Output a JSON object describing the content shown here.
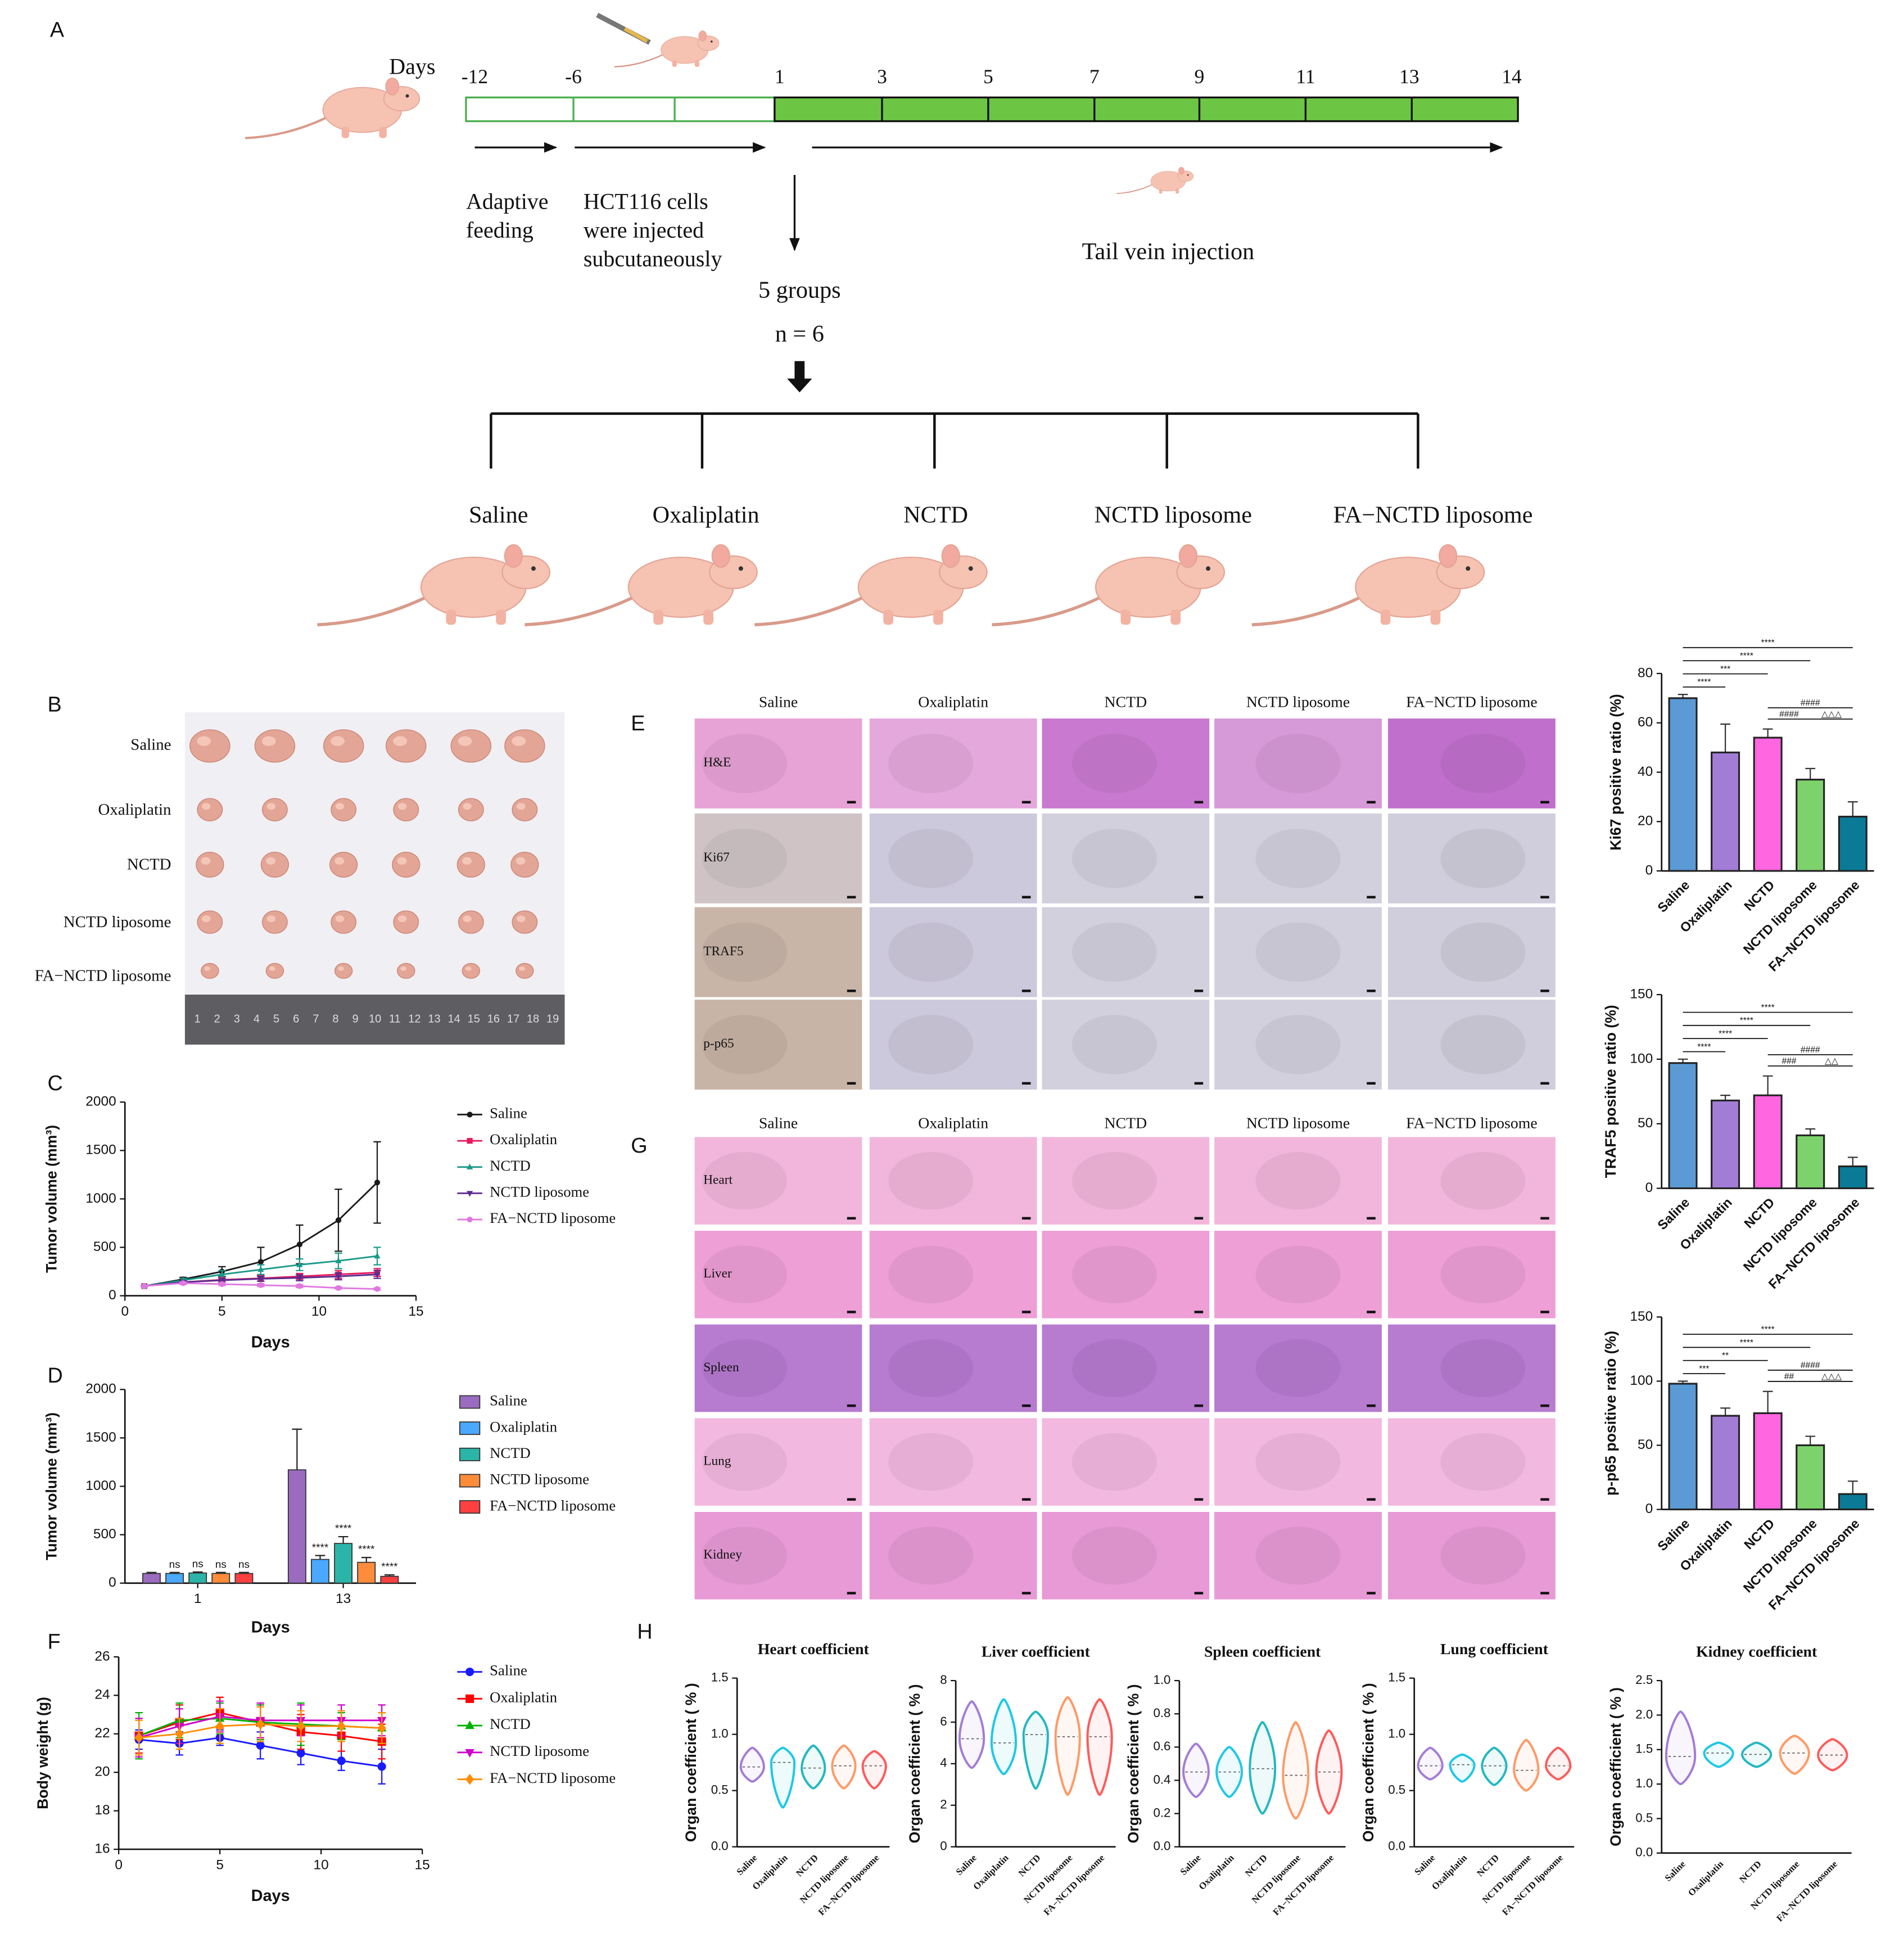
{
  "panel_labels": {
    "a": "A",
    "b": "B",
    "c": "C",
    "d": "D",
    "e": "E",
    "f": "F",
    "g": "G",
    "h": "H"
  },
  "timeline": {
    "unit": "Days",
    "days": [
      "-12",
      "-6",
      "1",
      "3",
      "5",
      "7",
      "9",
      "11",
      "13",
      "14"
    ],
    "phases": [
      [
        "Adaptive",
        "feeding"
      ],
      [
        "HCT116 cells",
        "were injected",
        "subcutaneously"
      ]
    ],
    "treatment": "Tail vein injection",
    "groups_label": "5 groups",
    "n_label": "n = 6",
    "groups": [
      "Saline",
      "Oxaliplatin",
      "NCTD",
      "NCTD liposome",
      "FA−NCTD liposome"
    ]
  },
  "tumor_photo": {
    "rows": [
      "Saline",
      "Oxaliplatin",
      "NCTD",
      "NCTD liposome",
      "FA−NCTD liposome"
    ],
    "ruler": [
      1,
      2,
      3,
      4,
      5,
      6,
      7,
      8,
      9,
      10,
      11,
      12,
      13,
      14,
      15,
      16,
      17,
      18,
      19
    ]
  },
  "histology_e": {
    "columns": [
      "Saline",
      "Oxaliplatin",
      "NCTD",
      "NCTD liposome",
      "FA−NCTD liposome"
    ],
    "rows": [
      "H&E",
      "Ki67",
      "TRAF5",
      "p-p65"
    ]
  },
  "histology_g": {
    "columns": [
      "Saline",
      "Oxaliplatin",
      "NCTD",
      "NCTD liposome",
      "FA−NCTD liposome"
    ],
    "rows": [
      "Heart",
      "Liver",
      "Spleen",
      "Lung",
      "Kidney"
    ]
  },
  "chart_data": [
    {
      "type": "line",
      "x_label": "Days",
      "y_label": "Tumor volume (mm³)",
      "x": [
        1,
        3,
        5,
        7,
        9,
        11,
        13
      ],
      "xlim": [
        0,
        15
      ],
      "xticks": [
        0,
        5,
        10,
        15
      ],
      "ylim": [
        0,
        2000
      ],
      "yticks": [
        0,
        500,
        1000,
        1500,
        2000
      ],
      "series": [
        {
          "name": "Saline",
          "color": "#1a1a1a",
          "marker": "circle",
          "values": [
            100,
            170,
            250,
            350,
            530,
            780,
            1170
          ],
          "errors": [
            5,
            20,
            50,
            150,
            200,
            320,
            420
          ]
        },
        {
          "name": "Oxaliplatin",
          "color": "#e6195a",
          "marker": "square",
          "values": [
            100,
            140,
            165,
            180,
            200,
            220,
            240
          ],
          "errors": [
            5,
            15,
            20,
            30,
            30,
            40,
            40
          ]
        },
        {
          "name": "NCTD",
          "color": "#1a9a8a",
          "marker": "triangle",
          "values": [
            100,
            160,
            220,
            270,
            320,
            360,
            410
          ],
          "errors": [
            5,
            20,
            40,
            50,
            60,
            80,
            90
          ]
        },
        {
          "name": "NCTD liposome",
          "color": "#5b2c8f",
          "marker": "triangle-down",
          "values": [
            100,
            140,
            160,
            175,
            185,
            200,
            220
          ],
          "errors": [
            5,
            15,
            20,
            25,
            30,
            35,
            40
          ]
        },
        {
          "name": "FA−NCTD liposome",
          "color": "#e078e0",
          "marker": "circle",
          "values": [
            100,
            130,
            120,
            110,
            100,
            80,
            70
          ],
          "errors": [
            5,
            10,
            15,
            15,
            15,
            10,
            10
          ]
        }
      ]
    },
    {
      "type": "grouped_bar",
      "x_label": "Days",
      "y_label": "Tumor volume (mm³)",
      "categories": [
        "1",
        "13"
      ],
      "ylim": [
        0,
        2000
      ],
      "yticks": [
        0,
        500,
        1000,
        1500,
        2000
      ],
      "series": [
        {
          "name": "Saline",
          "color": "#9b6bc0",
          "values": [
            100,
            1170
          ],
          "errors": [
            10,
            420
          ],
          "significance": [
            null,
            null
          ]
        },
        {
          "name": "Oxaliplatin",
          "color": "#4aa8ff",
          "values": [
            100,
            245
          ],
          "errors": [
            10,
            40
          ],
          "significance": [
            "ns",
            "****"
          ]
        },
        {
          "name": "NCTD",
          "color": "#2bb5a8",
          "values": [
            105,
            410
          ],
          "errors": [
            10,
            70
          ],
          "significance": [
            "ns",
            "****"
          ]
        },
        {
          "name": "NCTD liposome",
          "color": "#ff8c3a",
          "values": [
            100,
            215
          ],
          "errors": [
            10,
            50
          ],
          "significance": [
            "ns",
            "****"
          ]
        },
        {
          "name": "FA−NCTD liposome",
          "color": "#ff4040",
          "values": [
            100,
            70
          ],
          "errors": [
            10,
            15
          ],
          "significance": [
            "ns",
            "****"
          ]
        }
      ]
    },
    {
      "type": "line",
      "x_label": "Days",
      "y_label": "Body weight (g)",
      "x": [
        1,
        3,
        5,
        7,
        9,
        11,
        13
      ],
      "xlim": [
        0,
        15
      ],
      "xticks": [
        0,
        5,
        10,
        15
      ],
      "ylim": [
        16,
        26
      ],
      "yticks": [
        16,
        18,
        20,
        22,
        24,
        26
      ],
      "series": [
        {
          "name": "Saline",
          "color": "#1a1aff",
          "marker": "circle",
          "values": [
            21.7,
            21.5,
            21.8,
            21.4,
            21.0,
            20.6,
            20.3
          ],
          "errors": [
            0.5,
            0.6,
            0.4,
            0.7,
            0.6,
            0.5,
            0.9
          ]
        },
        {
          "name": "Oxaliplatin",
          "color": "#ff0000",
          "marker": "square",
          "values": [
            21.9,
            22.6,
            23.1,
            22.6,
            22.1,
            21.9,
            21.6
          ],
          "errors": [
            0.9,
            0.9,
            0.8,
            0.9,
            0.9,
            0.8,
            0.9
          ]
        },
        {
          "name": "NCTD",
          "color": "#00b000",
          "marker": "triangle",
          "values": [
            21.9,
            22.7,
            22.8,
            22.6,
            22.5,
            22.4,
            22.3
          ],
          "errors": [
            1.2,
            0.9,
            0.8,
            0.9,
            1.1,
            0.7,
            0.8
          ]
        },
        {
          "name": "NCTD liposome",
          "color": "#cc00cc",
          "marker": "triangle-down",
          "values": [
            21.8,
            22.4,
            22.9,
            22.7,
            22.7,
            22.7,
            22.7
          ],
          "errors": [
            1.0,
            0.9,
            0.8,
            0.9,
            0.8,
            0.8,
            0.8
          ]
        },
        {
          "name": "FA−NCTD liposome",
          "color": "#ff8c00",
          "marker": "diamond",
          "values": [
            21.8,
            22.0,
            22.4,
            22.5,
            22.4,
            22.4,
            22.3
          ],
          "errors": [
            0.9,
            0.8,
            0.9,
            0.9,
            0.8,
            0.8,
            0.8
          ]
        }
      ]
    },
    {
      "type": "bar",
      "y_label": "Ki67 positive ratio (%)",
      "categories": [
        "Saline",
        "Oxaliplatin",
        "NCTD",
        "NCTD liposome",
        "FA−NCTD liposome"
      ],
      "values": [
        70,
        48,
        54,
        37,
        22
      ],
      "errors": [
        1.5,
        11.5,
        3.5,
        4.5,
        6
      ],
      "colors": [
        "#5b9bd5",
        "#a37cd6",
        "#ff66e0",
        "#7dd36b",
        "#0a7a96"
      ],
      "ylim": [
        0,
        80
      ],
      "yticks": [
        0,
        20,
        40,
        60,
        80
      ],
      "comparisons": [
        {
          "between": [
            "Saline",
            "Oxaliplatin"
          ],
          "label": "****"
        },
        {
          "between": [
            "Saline",
            "NCTD"
          ],
          "label": "***"
        },
        {
          "between": [
            "Saline",
            "NCTD liposome"
          ],
          "label": "****"
        },
        {
          "between": [
            "Saline",
            "FA−NCTD liposome"
          ],
          "label": "****"
        },
        {
          "between": [
            "NCTD",
            "FA−NCTD liposome"
          ],
          "label": "####"
        },
        {
          "between": [
            "NCTD",
            "NCTD liposome"
          ],
          "label": "####"
        },
        {
          "between": [
            "NCTD liposome",
            "FA−NCTD liposome"
          ],
          "label": "△△△"
        }
      ]
    },
    {
      "type": "bar",
      "y_label": "TRAF5 positive ratio (%)",
      "categories": [
        "Saline",
        "Oxaliplatin",
        "NCTD",
        "NCTD liposome",
        "FA−NCTD liposome"
      ],
      "values": [
        97,
        68,
        72,
        41,
        17
      ],
      "errors": [
        3,
        4,
        15,
        5,
        7
      ],
      "colors": [
        "#5b9bd5",
        "#a37cd6",
        "#ff66e0",
        "#7dd36b",
        "#0a7a96"
      ],
      "ylim": [
        0,
        150
      ],
      "yticks": [
        0,
        50,
        100,
        150
      ],
      "comparisons": [
        {
          "between": [
            "Saline",
            "Oxaliplatin"
          ],
          "label": "****"
        },
        {
          "between": [
            "Saline",
            "NCTD"
          ],
          "label": "****"
        },
        {
          "between": [
            "Saline",
            "NCTD liposome"
          ],
          "label": "****"
        },
        {
          "between": [
            "Saline",
            "FA−NCTD liposome"
          ],
          "label": "****"
        },
        {
          "between": [
            "NCTD",
            "FA−NCTD liposome"
          ],
          "label": "####"
        },
        {
          "between": [
            "NCTD",
            "NCTD liposome"
          ],
          "label": "###"
        },
        {
          "between": [
            "NCTD liposome",
            "FA−NCTD liposome"
          ],
          "label": "△△"
        }
      ]
    },
    {
      "type": "bar",
      "y_label": "p-p65 positive ratio (%)",
      "categories": [
        "Saline",
        "Oxaliplatin",
        "NCTD",
        "NCTD liposome",
        "FA−NCTD liposome"
      ],
      "values": [
        98,
        73,
        75,
        50,
        12
      ],
      "errors": [
        2,
        6,
        17,
        7,
        10
      ],
      "colors": [
        "#5b9bd5",
        "#a37cd6",
        "#ff66e0",
        "#7dd36b",
        "#0a7a96"
      ],
      "ylim": [
        0,
        150
      ],
      "yticks": [
        0,
        50,
        100,
        150
      ],
      "comparisons": [
        {
          "between": [
            "Saline",
            "Oxaliplatin"
          ],
          "label": "***"
        },
        {
          "between": [
            "Saline",
            "NCTD"
          ],
          "label": "**"
        },
        {
          "between": [
            "Saline",
            "NCTD liposome"
          ],
          "label": "****"
        },
        {
          "between": [
            "Saline",
            "FA−NCTD liposome"
          ],
          "label": "****"
        },
        {
          "between": [
            "NCTD",
            "FA−NCTD liposome"
          ],
          "label": "####"
        },
        {
          "between": [
            "NCTD",
            "NCTD liposome"
          ],
          "label": "##"
        },
        {
          "between": [
            "NCTD liposome",
            "FA−NCTD liposome"
          ],
          "label": "△△△"
        }
      ]
    },
    {
      "type": "violin",
      "title": "Heart coefficient",
      "y_label": "Organ coefficient ( % )",
      "categories": [
        "Saline",
        "Oxaliplatin",
        "NCTD",
        "NCTD liposome",
        "FA−NCTD liposome"
      ],
      "colors": [
        "#a37cd6",
        "#1ec8e6",
        "#22b8c0",
        "#ff9966",
        "#ff5a5a"
      ],
      "mins": [
        0.58,
        0.35,
        0.52,
        0.52,
        0.52
      ],
      "medians": [
        0.71,
        0.75,
        0.7,
        0.72,
        0.72
      ],
      "maxs": [
        0.88,
        0.88,
        0.9,
        0.9,
        0.85
      ],
      "ylim": [
        0,
        1.5
      ],
      "yticks": [
        {
          "value": 0,
          "label": "0.0"
        },
        0.5,
        {
          "value": 1,
          "label": "1.0"
        },
        1.5
      ]
    },
    {
      "type": "violin",
      "title": "Liver coefficient",
      "y_label": "Organ coefficient ( % )",
      "categories": [
        "Saline",
        "Oxaliplatin",
        "NCTD",
        "NCTD liposome",
        "FA−NCTD liposome"
      ],
      "colors": [
        "#a37cd6",
        "#1ec8e6",
        "#22b8c0",
        "#ff9966",
        "#ff5a5a"
      ],
      "mins": [
        3.8,
        3.5,
        2.8,
        2.5,
        2.5
      ],
      "medians": [
        5.2,
        5.0,
        5.4,
        5.3,
        5.3
      ],
      "maxs": [
        7.0,
        7.1,
        6.5,
        7.2,
        7.1
      ],
      "ylim": [
        0,
        8
      ],
      "yticks": [
        0,
        2,
        4,
        6,
        8
      ]
    },
    {
      "type": "violin",
      "title": "Spleen coefficient",
      "y_label": "Organ coefficient ( % )",
      "categories": [
        "Saline",
        "Oxaliplatin",
        "NCTD",
        "NCTD liposome",
        "FA−NCTD liposome"
      ],
      "colors": [
        "#a37cd6",
        "#1ec8e6",
        "#22b8c0",
        "#ff9966",
        "#ff5a5a"
      ],
      "mins": [
        0.3,
        0.3,
        0.2,
        0.17,
        0.2
      ],
      "medians": [
        0.45,
        0.45,
        0.47,
        0.43,
        0.45
      ],
      "maxs": [
        0.62,
        0.6,
        0.75,
        0.75,
        0.7
      ],
      "ylim": [
        0,
        1
      ],
      "yticks": [
        {
          "value": 0,
          "label": "0.0"
        },
        0.2,
        0.4,
        0.6,
        0.8,
        {
          "value": 1,
          "label": "1.0"
        }
      ]
    },
    {
      "type": "violin",
      "title": "Lung coefficient",
      "y_label": "Organ coefficient ( % )",
      "categories": [
        "Saline",
        "Oxaliplatin",
        "NCTD",
        "NCTD liposome",
        "FA−NCTD liposome"
      ],
      "colors": [
        "#a37cd6",
        "#1ec8e6",
        "#22b8c0",
        "#ff9966",
        "#ff5a5a"
      ],
      "mins": [
        0.6,
        0.58,
        0.55,
        0.5,
        0.6
      ],
      "medians": [
        0.72,
        0.73,
        0.72,
        0.68,
        0.72
      ],
      "maxs": [
        0.88,
        0.82,
        0.88,
        0.95,
        0.88
      ],
      "ylim": [
        0,
        1.5
      ],
      "yticks": [
        {
          "value": 0,
          "label": "0.0"
        },
        0.5,
        {
          "value": 1,
          "label": "1.0"
        },
        1.5
      ]
    },
    {
      "type": "violin",
      "title": "Kidney coefficient",
      "y_label": "Organ coefficient ( % )",
      "categories": [
        "Saline",
        "Oxaliplatin",
        "NCTD",
        "NCTD liposome",
        "FA−NCTD liposome"
      ],
      "colors": [
        "#a37cd6",
        "#1ec8e6",
        "#22b8c0",
        "#ff9966",
        "#ff5a5a"
      ],
      "mins": [
        1.0,
        1.25,
        1.25,
        1.15,
        1.2
      ],
      "medians": [
        1.4,
        1.45,
        1.43,
        1.45,
        1.42
      ],
      "maxs": [
        2.05,
        1.6,
        1.6,
        1.7,
        1.65
      ],
      "ylim": [
        0,
        2.5
      ],
      "yticks": [
        {
          "value": 0,
          "label": "0.0"
        },
        0.5,
        {
          "value": 1,
          "label": "1.0"
        },
        1.5,
        {
          "value": 2,
          "label": "2.0"
        },
        2.5
      ]
    }
  ]
}
